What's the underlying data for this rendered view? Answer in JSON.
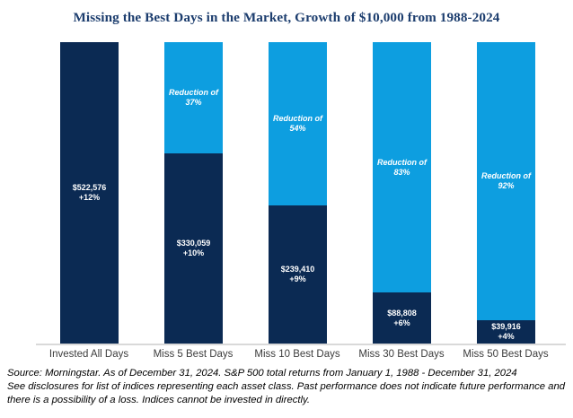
{
  "colors": {
    "bar_navy": "#0B2A53",
    "bar_light_blue": "#0D9EE0",
    "title": "#1C3D6E",
    "axis_line": "#D9D9D9",
    "category_label": "#3C3C3C",
    "footer_text": "#000000"
  },
  "chart_data": {
    "type": "bar",
    "stacked": true,
    "title": "Missing the Best Days in the Market, Growth of $10,000 from 1988-2024",
    "categories": [
      "Invested All Days",
      "Miss 5 Best Days",
      "Miss 10 Best Days",
      "Miss 30 Best Days",
      "Miss 50 Best Days"
    ],
    "max_value": 522576,
    "ylim": [
      0,
      522576
    ],
    "grid": false,
    "legend": "none",
    "bars": [
      {
        "category": "Invested All Days",
        "value": 522576,
        "value_label": "$522,576",
        "return_label": "+12%",
        "reduction_pct": 0,
        "reduction_line1": "",
        "reduction_line2": ""
      },
      {
        "category": "Miss 5 Best Days",
        "value": 330059,
        "value_label": "$330,059",
        "return_label": "+10%",
        "reduction_pct": 37,
        "reduction_line1": "Reduction of",
        "reduction_line2": "37%"
      },
      {
        "category": "Miss 10 Best Days",
        "value": 239410,
        "value_label": "$239,410",
        "return_label": "+9%",
        "reduction_pct": 54,
        "reduction_line1": "Reduction of",
        "reduction_line2": "54%"
      },
      {
        "category": "Miss 30 Best Days",
        "value": 88808,
        "value_label": "$88,808",
        "return_label": "+6%",
        "reduction_pct": 83,
        "reduction_line1": "Reduction of",
        "reduction_line2": "83%"
      },
      {
        "category": "Miss 50 Best Days",
        "value": 39916,
        "value_label": "$39,916",
        "return_label": "+4%",
        "reduction_pct": 92,
        "reduction_line1": "Reduction of",
        "reduction_line2": "92%"
      }
    ]
  },
  "footer": {
    "line1": "Source: Morningstar. As of December 31, 2024. S&P 500 total returns from January 1, 1988 - December 31, 2024",
    "line2": "See disclosures for list of indices representing each asset class. Past performance does not indicate future performance and",
    "line3": "there is a possibility of a loss. Indices cannot be invested in directly."
  }
}
